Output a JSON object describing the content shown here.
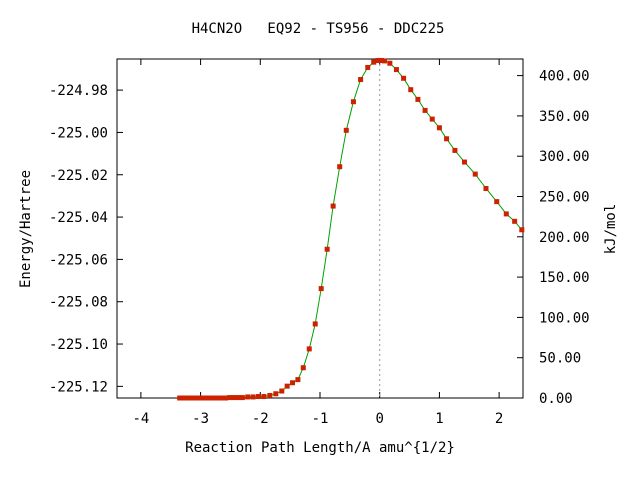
{
  "chart_data": {
    "type": "line",
    "title": "H4CN2O   EQ92 - TS956 - DDC225",
    "xlabel": "Reaction Path Length/A amu^{1/2}",
    "ylabel": "Energy/Hartree",
    "y2label": "kJ/mol",
    "xlim": [
      -4.4,
      2.4
    ],
    "ylim": [
      -225.1255,
      -224.9653
    ],
    "y2lim": [
      0,
      420.6
    ],
    "grid": false,
    "ts_marker_x": 0.0,
    "x_ticks": [
      -4,
      -3,
      -2,
      -1,
      0,
      1,
      2
    ],
    "x_tick_labels": [
      "-4",
      "-3",
      "-2",
      "-1",
      "0",
      "1",
      "2"
    ],
    "y_ticks": [
      -224.98,
      -225.0,
      -225.02,
      -225.04,
      -225.06,
      -225.08,
      -225.1,
      -225.12
    ],
    "y_tick_labels": [
      "-224.98",
      "-225.00",
      "-225.02",
      "-225.04",
      "-225.06",
      "-225.08",
      "-225.10",
      "-225.12"
    ],
    "y2_ticks": [
      400,
      350,
      300,
      250,
      200,
      150,
      100,
      50,
      0
    ],
    "y2_tick_labels": [
      "400.00",
      "350.00",
      "300.00",
      "250.00",
      "200.00",
      "150.00",
      "100.00",
      "50.00",
      "0.00"
    ],
    "series": [
      {
        "color": "#00a000",
        "marker_color": "#cc2200",
        "x": [
          -3.35,
          -3.28,
          -3.21,
          -3.14,
          -3.07,
          -3.0,
          -2.93,
          -2.86,
          -2.79,
          -2.72,
          -2.65,
          -2.58,
          -2.51,
          -2.44,
          -2.37,
          -2.3,
          -2.21,
          -2.12,
          -2.03,
          -1.94,
          -1.84,
          -1.74,
          -1.64,
          -1.55,
          -1.46,
          -1.37,
          -1.28,
          -1.18,
          -1.08,
          -0.98,
          -0.88,
          -0.78,
          -0.67,
          -0.56,
          -0.44,
          -0.32,
          -0.2,
          -0.1,
          -0.03,
          0.0,
          0.03,
          0.08,
          0.17,
          0.28,
          0.4,
          0.52,
          0.64,
          0.76,
          0.88,
          1.0,
          1.12,
          1.26,
          1.42,
          1.6,
          1.78,
          1.96,
          2.12,
          2.26,
          2.38
        ],
        "y": [
          -225.1255,
          -225.1255,
          -225.1255,
          -225.1255,
          -225.1255,
          -225.1255,
          -225.1255,
          -225.1255,
          -225.1255,
          -225.1255,
          -225.1255,
          -225.1255,
          -225.1253,
          -225.1253,
          -225.1253,
          -225.1253,
          -225.125,
          -225.125,
          -225.1248,
          -225.1248,
          -225.1243,
          -225.1235,
          -225.1222,
          -225.1199,
          -225.1183,
          -225.1168,
          -225.1112,
          -225.1023,
          -225.0905,
          -225.0738,
          -225.0552,
          -225.0348,
          -225.0162,
          -224.999,
          -224.9855,
          -224.975,
          -224.9693,
          -224.9668,
          -224.966,
          -224.966,
          -224.966,
          -224.9662,
          -224.9673,
          -224.9703,
          -224.9744,
          -224.9798,
          -224.9844,
          -224.9896,
          -224.9937,
          -224.9978,
          -225.003,
          -225.0085,
          -225.014,
          -225.0197,
          -225.0265,
          -225.0327,
          -225.0385,
          -225.042,
          -225.046
        ]
      }
    ]
  }
}
